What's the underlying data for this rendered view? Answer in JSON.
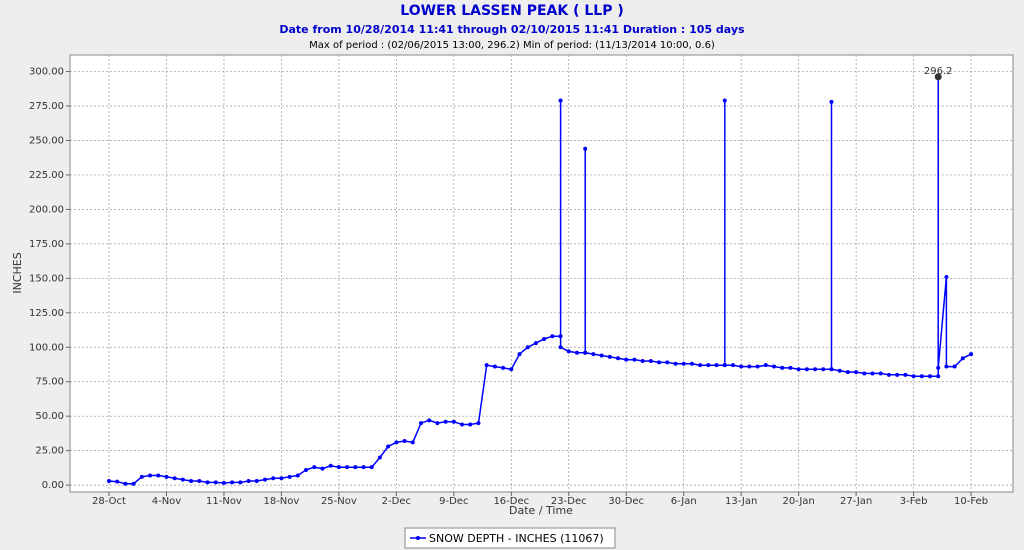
{
  "chart_data": {
    "type": "line",
    "title": "LOWER LASSEN PEAK ( LLP )",
    "subtitle": "Date from 10/28/2014 11:41 through 02/10/2015 11:41 Duration : 105 days",
    "note": "Max of period : (02/06/2015 13:00, 296.2)  Min of period: (11/13/2014 10:00,  0.6)",
    "xlabel": "Date / Time",
    "ylabel": "INCHES",
    "x": [
      "28-Oct",
      "29-Oct",
      "30-Oct",
      "31-Oct",
      "1-Nov",
      "2-Nov",
      "3-Nov",
      "4-Nov",
      "5-Nov",
      "6-Nov",
      "7-Nov",
      "8-Nov",
      "9-Nov",
      "10-Nov",
      "11-Nov",
      "12-Nov",
      "13-Nov",
      "14-Nov",
      "15-Nov",
      "16-Nov",
      "17-Nov",
      "18-Nov",
      "19-Nov",
      "20-Nov",
      "21-Nov",
      "22-Nov",
      "23-Nov",
      "24-Nov",
      "25-Nov",
      "26-Nov",
      "27-Nov",
      "28-Nov",
      "29-Nov",
      "30-Nov",
      "1-Dec",
      "2-Dec",
      "3-Dec",
      "4-Dec",
      "5-Dec",
      "6-Dec",
      "7-Dec",
      "8-Dec",
      "9-Dec",
      "10-Dec",
      "11-Dec",
      "12-Dec",
      "13-Dec",
      "14-Dec",
      "15-Dec",
      "16-Dec",
      "17-Dec",
      "18-Dec",
      "19-Dec",
      "20-Dec",
      "21-Dec",
      "22-Dec",
      "22-Dec",
      "22-Dec",
      "23-Dec",
      "24-Dec",
      "25-Dec",
      "25-Dec",
      "25-Dec",
      "26-Dec",
      "27-Dec",
      "28-Dec",
      "29-Dec",
      "30-Dec",
      "31-Dec",
      "1-Jan",
      "2-Jan",
      "3-Jan",
      "4-Jan",
      "5-Jan",
      "6-Jan",
      "7-Jan",
      "8-Jan",
      "9-Jan",
      "10-Jan",
      "11-Jan",
      "11-Jan",
      "11-Jan",
      "12-Jan",
      "13-Jan",
      "14-Jan",
      "15-Jan",
      "16-Jan",
      "17-Jan",
      "18-Jan",
      "19-Jan",
      "20-Jan",
      "21-Jan",
      "22-Jan",
      "23-Jan",
      "24-Jan",
      "24-Jan",
      "24-Jan",
      "25-Jan",
      "26-Jan",
      "27-Jan",
      "28-Jan",
      "29-Jan",
      "30-Jan",
      "31-Jan",
      "1-Feb",
      "2-Feb",
      "3-Feb",
      "4-Feb",
      "5-Feb",
      "6-Feb",
      "6-Feb",
      "6-Feb",
      "7-Feb",
      "7-Feb",
      "8-Feb",
      "9-Feb",
      "10-Feb"
    ],
    "series": [
      {
        "name": "SNOW DEPTH - INCHES (11067)",
        "color": "#0000ff",
        "values": [
          3,
          2.5,
          1,
          1,
          6,
          7,
          7,
          6,
          5,
          4,
          3,
          3,
          2,
          2,
          1.5,
          2,
          2,
          3,
          3,
          4,
          5,
          5,
          6,
          7,
          11,
          13,
          12,
          14,
          13,
          13,
          13,
          13,
          13,
          20,
          28,
          31,
          32,
          31,
          45,
          47,
          45,
          46,
          46,
          44,
          44,
          45,
          87,
          86,
          85,
          84,
          95,
          100,
          103,
          106,
          108,
          108,
          279,
          100,
          97,
          96,
          96,
          244,
          96,
          95,
          94,
          93,
          92,
          91,
          91,
          90,
          90,
          89,
          89,
          88,
          88,
          88,
          87,
          87,
          87,
          87,
          279,
          87,
          87,
          86,
          86,
          86,
          87,
          86,
          85,
          85,
          84,
          84,
          84,
          84,
          84,
          278,
          84,
          83,
          82,
          82,
          81,
          81,
          81,
          80,
          80,
          80,
          79,
          79,
          79,
          79,
          296.2,
          85,
          151,
          86,
          86,
          92,
          95
        ]
      }
    ],
    "xticks": [
      "28-Oct",
      "4-Nov",
      "11-Nov",
      "18-Nov",
      "25-Nov",
      "2-Dec",
      "9-Dec",
      "16-Dec",
      "23-Dec",
      "30-Dec",
      "6-Jan",
      "13-Jan",
      "20-Jan",
      "27-Jan",
      "3-Feb",
      "10-Feb"
    ],
    "ylim": [
      -5,
      312
    ],
    "yticks": [
      {
        "value": 0,
        "label": "0.00"
      },
      {
        "value": 25,
        "label": "25.00"
      },
      {
        "value": 50,
        "label": "50.00"
      },
      {
        "value": 75,
        "label": "75.00"
      },
      {
        "value": 100,
        "label": "100.00"
      },
      {
        "value": 125,
        "label": "125.00"
      },
      {
        "value": 150,
        "label": "150.00"
      },
      {
        "value": 175,
        "label": "175.00"
      },
      {
        "value": 200,
        "label": "200.00"
      },
      {
        "value": 225,
        "label": "225.00"
      },
      {
        "value": 250,
        "label": "250.00"
      },
      {
        "value": 275,
        "label": "275.00"
      },
      {
        "value": 300,
        "label": "300.00"
      }
    ],
    "grid": true
  }
}
